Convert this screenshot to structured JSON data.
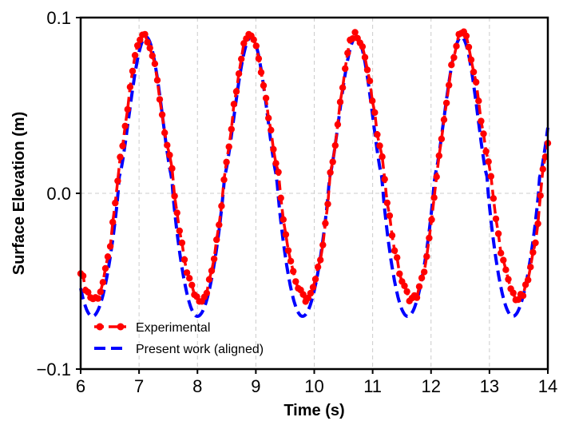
{
  "chart_data": {
    "type": "line",
    "title": "",
    "xlabel": "Time (s)",
    "ylabel": "Surface Elevation (m)",
    "xlim": [
      6,
      14
    ],
    "ylim": [
      -0.1,
      0.1
    ],
    "xticks": [
      6,
      7,
      8,
      9,
      10,
      11,
      12,
      13,
      14
    ],
    "yticks": [
      -0.1,
      0.0,
      0.1
    ],
    "ytick_labels": [
      "−0.1",
      "0.0",
      "0.1"
    ],
    "grid": true,
    "legend_position": "lower-left",
    "series": [
      {
        "name": "Experimental",
        "color": "#ff0000",
        "style": "dashed-with-markers",
        "wave": {
          "start": 6.0,
          "end": 14.0,
          "samples": 190,
          "period": 1.817,
          "peak_time": 7.07,
          "trough_time": 8.05,
          "crest": 0.091,
          "trough": -0.06
        }
      },
      {
        "name": "Present work (aligned)",
        "color": "#0000ff",
        "style": "dashed",
        "wave": {
          "start": 6.0,
          "end": 14.0,
          "samples": 400,
          "period": 1.8,
          "peak_time": 7.12,
          "trough_time": 8.0,
          "crest": 0.089,
          "trough": -0.07
        }
      }
    ]
  }
}
